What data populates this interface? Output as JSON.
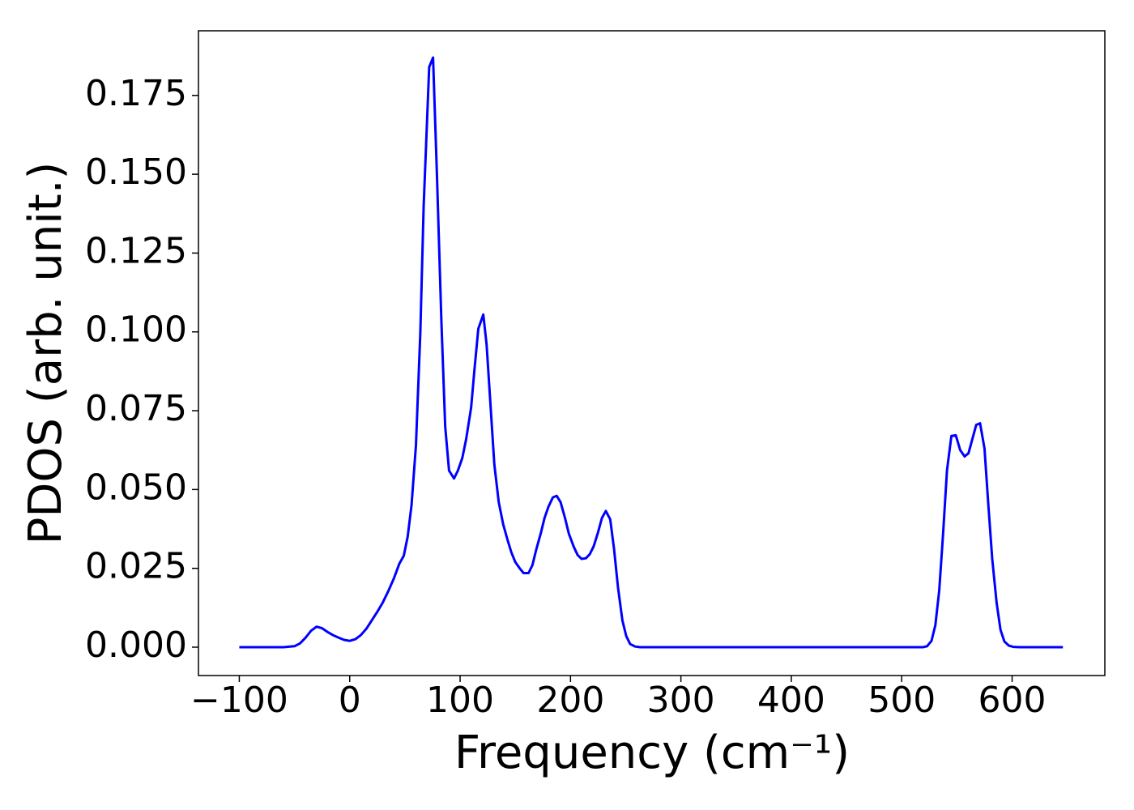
{
  "chart_data": {
    "type": "line",
    "xlabel": "Frequency (cm⁻¹)",
    "ylabel": "PDOS (arb. unit.)",
    "x": [
      -100,
      -80,
      -60,
      -50,
      -45,
      -40,
      -35,
      -30,
      -25,
      -20,
      -15,
      -10,
      -5,
      0,
      5,
      10,
      15,
      20,
      25,
      30,
      35,
      40,
      45,
      49,
      52.5,
      56,
      60,
      64,
      67,
      72,
      75.5,
      79,
      83,
      86.5,
      90,
      94.5,
      98,
      102,
      105.5,
      110,
      113,
      116.5,
      121,
      124,
      127.5,
      131,
      135,
      139,
      143,
      146.5,
      150,
      154,
      157.5,
      162,
      165.5,
      169,
      173,
      176.5,
      180,
      184,
      187.5,
      191,
      195,
      198.5,
      203,
      206.5,
      210,
      214,
      217.5,
      221,
      225,
      228.5,
      232,
      236,
      239.5,
      243,
      247,
      250.5,
      254,
      258.5,
      263,
      400,
      519.5,
      523,
      527,
      530.5,
      534,
      537.5,
      541,
      545,
      549,
      553,
      557,
      560.5,
      564,
      567.5,
      571,
      575,
      578.5,
      582,
      586,
      589.5,
      593,
      597,
      601,
      607,
      646
    ],
    "series": [
      {
        "color": "#0000ff",
        "values": [
          0,
          0,
          0,
          0.0003,
          0.0012,
          0.003,
          0.0052,
          0.0065,
          0.006,
          0.0048,
          0.0038,
          0.003,
          0.0023,
          0.002,
          0.0025,
          0.0038,
          0.0058,
          0.0085,
          0.0112,
          0.0142,
          0.0178,
          0.0218,
          0.0265,
          0.029,
          0.035,
          0.045,
          0.064,
          0.1,
          0.14,
          0.184,
          0.187,
          0.15,
          0.104,
          0.07,
          0.056,
          0.0535,
          0.056,
          0.06,
          0.066,
          0.076,
          0.088,
          0.101,
          0.1055,
          0.096,
          0.077,
          0.058,
          0.046,
          0.039,
          0.034,
          0.03,
          0.027,
          0.025,
          0.0235,
          0.0235,
          0.026,
          0.031,
          0.036,
          0.041,
          0.0445,
          0.0475,
          0.048,
          0.046,
          0.041,
          0.036,
          0.0318,
          0.0292,
          0.028,
          0.0282,
          0.0295,
          0.032,
          0.0365,
          0.041,
          0.0432,
          0.0405,
          0.031,
          0.019,
          0.0085,
          0.0035,
          0.001,
          0.0002,
          0,
          0,
          0,
          0.0003,
          0.002,
          0.007,
          0.018,
          0.036,
          0.056,
          0.067,
          0.0672,
          0.0625,
          0.0605,
          0.0615,
          0.066,
          0.0705,
          0.071,
          0.063,
          0.045,
          0.028,
          0.014,
          0.0055,
          0.0018,
          0.0005,
          0.0001,
          0,
          0
        ]
      }
    ],
    "xlim": [
      -137,
      684
    ],
    "ylim": [
      -0.009,
      0.1955
    ],
    "xticks": [
      {
        "value": -100,
        "label": "−100"
      },
      0,
      100,
      200,
      300,
      400,
      500,
      600
    ],
    "yticks": [
      {
        "value": 0,
        "label": "0.000"
      },
      {
        "value": 0.025,
        "label": "0.025"
      },
      {
        "value": 0.05,
        "label": "0.050"
      },
      {
        "value": 0.075,
        "label": "0.075"
      },
      {
        "value": 0.1,
        "label": "0.100"
      },
      {
        "value": 0.125,
        "label": "0.125"
      },
      {
        "value": 0.15,
        "label": "0.150"
      },
      {
        "value": 0.175,
        "label": "0.175"
      }
    ]
  }
}
